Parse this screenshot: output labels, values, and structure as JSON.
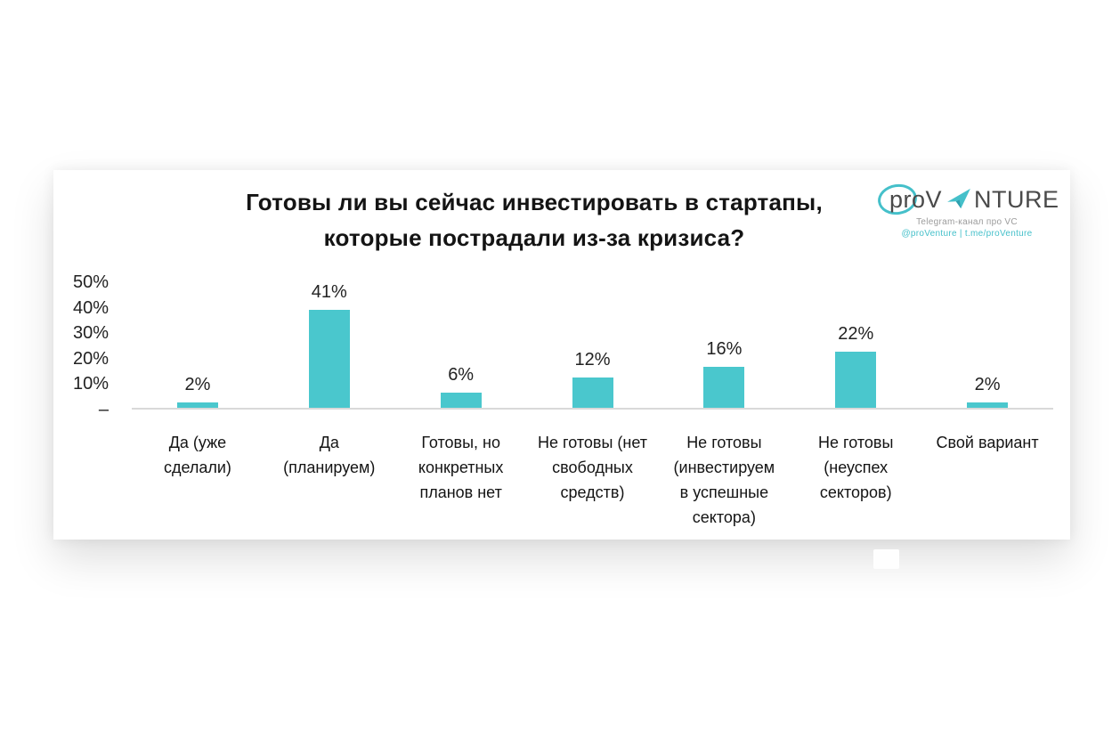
{
  "header": {
    "title_lines": [
      "Готовы ли вы сейчас инвестировать в стартапы,",
      "которые пострадали из-за кризиса?"
    ]
  },
  "logo": {
    "brand_prefix": "proV",
    "brand_suffix": "NTURE",
    "tagline": "Telegram-канал про VC",
    "handles": "@proVenture | t.me/proVenture",
    "colors": {
      "teal": "#45c0ca",
      "teal_dark": "#2e9fae",
      "text": "#4a4a4a",
      "tagline_gray": "#9b9b9b"
    }
  },
  "chart_data": {
    "type": "bar",
    "title": "Готовы ли вы сейчас инвестировать в стартапы, которые пострадали из-за кризиса?",
    "categories": [
      [
        "Да (уже",
        "сделали)"
      ],
      [
        "Да",
        "(планируем)"
      ],
      [
        "Готовы, но",
        "конкретных",
        "планов нет"
      ],
      [
        "Не готовы (нет",
        "свободных",
        "средств)"
      ],
      [
        "Не готовы",
        "(инвестируем",
        "в успешные",
        "сектора)"
      ],
      [
        "Не готовы",
        "(неуспех",
        "секторов)"
      ],
      [
        "Свой вариант"
      ]
    ],
    "values": [
      2,
      41,
      6,
      12,
      16,
      22,
      2
    ],
    "value_labels": [
      "2%",
      "41%",
      "6%",
      "12%",
      "16%",
      "22%",
      "2%"
    ],
    "y_ticks": [
      {
        "label": "50%",
        "value": 50
      },
      {
        "label": "40%",
        "value": 40
      },
      {
        "label": "30%",
        "value": 30
      },
      {
        "label": "20%",
        "value": 20
      },
      {
        "label": "10%",
        "value": 10
      },
      {
        "label": "–",
        "value": 0
      }
    ],
    "ylim": [
      0,
      50
    ],
    "xlabel": "",
    "ylabel": "",
    "grid": false,
    "legend": false,
    "bar_color": "#4ac7cd",
    "axis_line_color": "#d9d9d9"
  }
}
